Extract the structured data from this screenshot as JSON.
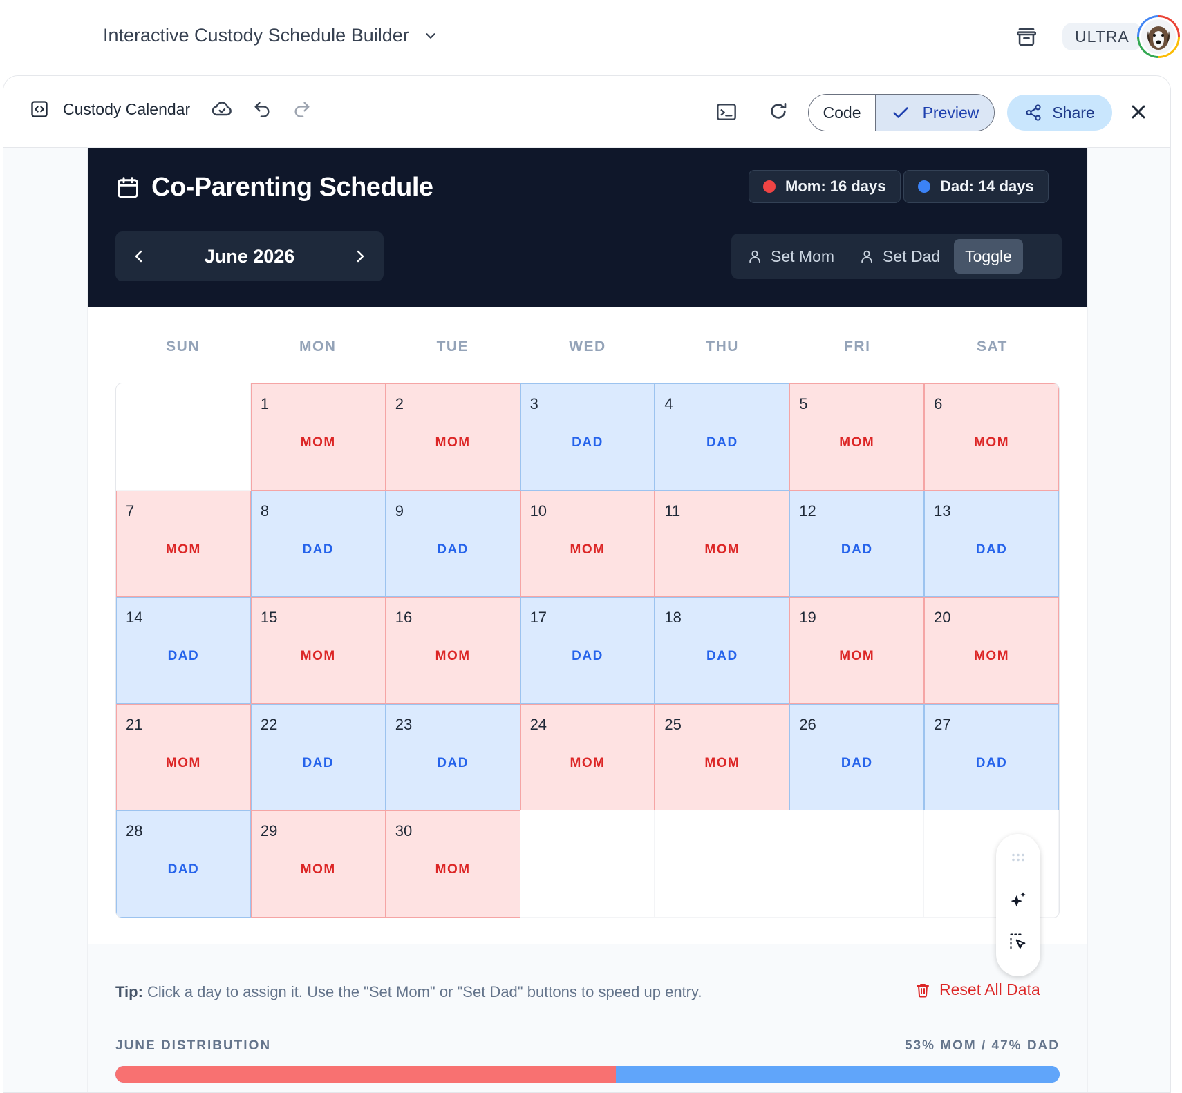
{
  "app": {
    "title": "Interactive Custody Schedule Builder",
    "plan_badge": "ULTRA"
  },
  "toolbar": {
    "file_name": "Custody Calendar",
    "code_label": "Code",
    "preview_label": "Preview",
    "share_label": "Share"
  },
  "schedule": {
    "title": "Co-Parenting Schedule",
    "mom_badge": "Mom: 16 days",
    "dad_badge": "Dad: 14 days",
    "month_label": "June 2026",
    "modes": {
      "set_mom": "Set Mom",
      "set_dad": "Set Dad",
      "toggle": "Toggle"
    },
    "weekdays": [
      "SUN",
      "MON",
      "TUE",
      "WED",
      "THU",
      "FRI",
      "SAT"
    ],
    "first_weekday_index": 1,
    "labels": {
      "mom": "MOM",
      "dad": "DAD"
    },
    "days": [
      {
        "day": "1",
        "parent": "mom"
      },
      {
        "day": "2",
        "parent": "mom"
      },
      {
        "day": "3",
        "parent": "dad"
      },
      {
        "day": "4",
        "parent": "dad"
      },
      {
        "day": "5",
        "parent": "mom"
      },
      {
        "day": "6",
        "parent": "mom"
      },
      {
        "day": "7",
        "parent": "mom"
      },
      {
        "day": "8",
        "parent": "dad"
      },
      {
        "day": "9",
        "parent": "dad"
      },
      {
        "day": "10",
        "parent": "mom"
      },
      {
        "day": "11",
        "parent": "mom"
      },
      {
        "day": "12",
        "parent": "dad"
      },
      {
        "day": "13",
        "parent": "dad"
      },
      {
        "day": "14",
        "parent": "dad"
      },
      {
        "day": "15",
        "parent": "mom"
      },
      {
        "day": "16",
        "parent": "mom"
      },
      {
        "day": "17",
        "parent": "dad"
      },
      {
        "day": "18",
        "parent": "dad"
      },
      {
        "day": "19",
        "parent": "mom"
      },
      {
        "day": "20",
        "parent": "mom"
      },
      {
        "day": "21",
        "parent": "mom"
      },
      {
        "day": "22",
        "parent": "dad"
      },
      {
        "day": "23",
        "parent": "dad"
      },
      {
        "day": "24",
        "parent": "mom"
      },
      {
        "day": "25",
        "parent": "mom"
      },
      {
        "day": "26",
        "parent": "dad"
      },
      {
        "day": "27",
        "parent": "dad"
      },
      {
        "day": "28",
        "parent": "dad"
      },
      {
        "day": "29",
        "parent": "mom"
      },
      {
        "day": "30",
        "parent": "mom"
      }
    ]
  },
  "footer": {
    "tip_label": "Tip:",
    "tip_text": " Click a day to assign it. Use the \"Set Mom\" or \"Set Dad\" buttons to speed up entry.",
    "reset_label": "Reset All Data",
    "distribution_label": "JUNE DISTRIBUTION",
    "distribution_text": "53% MOM / 47% DAD",
    "mom_percent": 53,
    "dad_percent": 47
  },
  "colors": {
    "header_bg": "#0f172a",
    "mom": "#ef4444",
    "dad": "#3b82f6",
    "mom_cell": "#fee2e2",
    "dad_cell": "#dbeafe"
  }
}
